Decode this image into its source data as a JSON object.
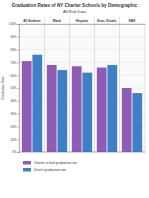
{
  "chart_data": {
    "type": "bar",
    "title": "Graduation Rates of NY Charter Schools by Demographic",
    "subtitle": "All Risk Data",
    "y_label": "Graduation Rate",
    "categories": [
      "All Students",
      "Black",
      "Hispanic",
      "Econ. Disadv.",
      "SWD"
    ],
    "series": [
      {
        "name": "Charter school graduation rate",
        "color": "#8e5bb5",
        "values": [
          71,
          68,
          67,
          66,
          50
        ]
      },
      {
        "name": "District graduation rate",
        "color": "#3f7fc6",
        "values": [
          76,
          64,
          62,
          68,
          46
        ]
      }
    ],
    "ylim": [
      0,
      100
    ],
    "yticks": [
      {
        "value": 0,
        "label": "0%"
      },
      {
        "value": 10,
        "label": "10%"
      },
      {
        "value": 20,
        "label": "20%"
      },
      {
        "value": 30,
        "label": "30%"
      },
      {
        "value": 40,
        "label": "40%"
      },
      {
        "value": 50,
        "label": "50%"
      },
      {
        "value": 60,
        "label": "60%"
      },
      {
        "value": 70,
        "label": "70%"
      },
      {
        "value": 80,
        "label": "80%"
      },
      {
        "value": 90,
        "label": "90%"
      },
      {
        "value": 100,
        "label": "100%"
      }
    ],
    "grid": true,
    "legend": "bottom"
  }
}
